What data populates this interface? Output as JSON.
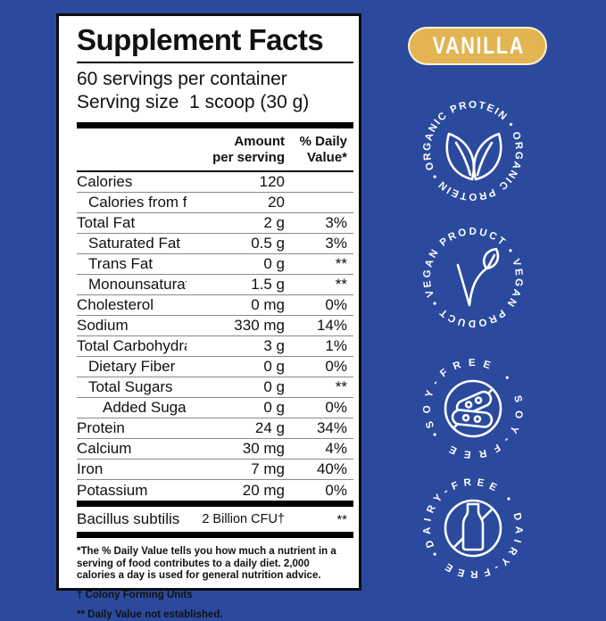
{
  "colors": {
    "background": "#2b4a9e",
    "label_bg": "#ffffff",
    "label_border": "#0d0d0d",
    "pill_bg": "#e2b452",
    "badge_color": "#ffffff",
    "text_color": "#111111"
  },
  "label": {
    "title": "Supplement Facts",
    "servings_per_container": "60 servings per container",
    "serving_size": "Serving size  1 scoop (30 g)",
    "columns": {
      "amount_line1": "Amount",
      "amount_line2": "per serving",
      "dv_line1": "% Daily",
      "dv_line2": "Value*"
    },
    "rows": [
      {
        "name": "Calories",
        "amount": "120",
        "dv": "",
        "indent": 0
      },
      {
        "name": "Calories from fat",
        "amount": "20",
        "dv": "",
        "indent": 1
      },
      {
        "name": "Total Fat",
        "amount": "2 g",
        "dv": "3%",
        "indent": 0
      },
      {
        "name": "Saturated Fat",
        "amount": "0.5 g",
        "dv": "3%",
        "indent": 1
      },
      {
        "name": "Trans Fat",
        "amount": "0 g",
        "dv": "**",
        "indent": 1
      },
      {
        "name": "Monounsaturated Fat",
        "amount": "1.5 g",
        "dv": "**",
        "indent": 1
      },
      {
        "name": "Cholesterol",
        "amount": "0 mg",
        "dv": "0%",
        "indent": 0
      },
      {
        "name": "Sodium",
        "amount": "330 mg",
        "dv": "14%",
        "indent": 0
      },
      {
        "name": "Total Carbohydrate",
        "amount": "3 g",
        "dv": "1%",
        "indent": 0
      },
      {
        "name": "Dietary Fiber",
        "amount": "0 g",
        "dv": "0%",
        "indent": 1
      },
      {
        "name": "Total Sugars",
        "amount": "0 g",
        "dv": "**",
        "indent": 1
      },
      {
        "name": "Added Sugars",
        "amount": "0 g",
        "dv": "0%",
        "indent": 2
      },
      {
        "name": "Protein",
        "amount": "24 g",
        "dv": "34%",
        "indent": 0
      },
      {
        "name": "Calcium",
        "amount": "30 mg",
        "dv": "4%",
        "indent": 0
      },
      {
        "name": "Iron",
        "amount": "7 mg",
        "dv": "40%",
        "indent": 0
      },
      {
        "name": "Potassium",
        "amount": "20 mg",
        "dv": "0%",
        "indent": 0
      }
    ],
    "probiotic": {
      "name": "Bacillus subtilis",
      "amount": "2 Billion CFU†",
      "dv": "**"
    },
    "footnotes": {
      "dv_note": "*The % Daily Value tells you how much a nutrient in a serving of food contributes to a daily diet. 2,000 calories a day is used for general nutrition advice.",
      "cfu_note": "† Colony Forming Units",
      "ns_note": "** Daily Value not established."
    }
  },
  "flavor_badge": {
    "label": "VANILLA"
  },
  "badges": [
    {
      "id": "organic-protein",
      "ring_text": "ORGANIC PROTEIN • ORGANIC PROTEIN •"
    },
    {
      "id": "vegan-product",
      "ring_text": "VEGAN PRODUCT • VEGAN PRODUCT •"
    },
    {
      "id": "soy-free",
      "ring_text": "SOY-FREE • SOY-FREE •"
    },
    {
      "id": "dairy-free",
      "ring_text": "DAIRY-FREE • DAIRY-FREE •"
    }
  ]
}
